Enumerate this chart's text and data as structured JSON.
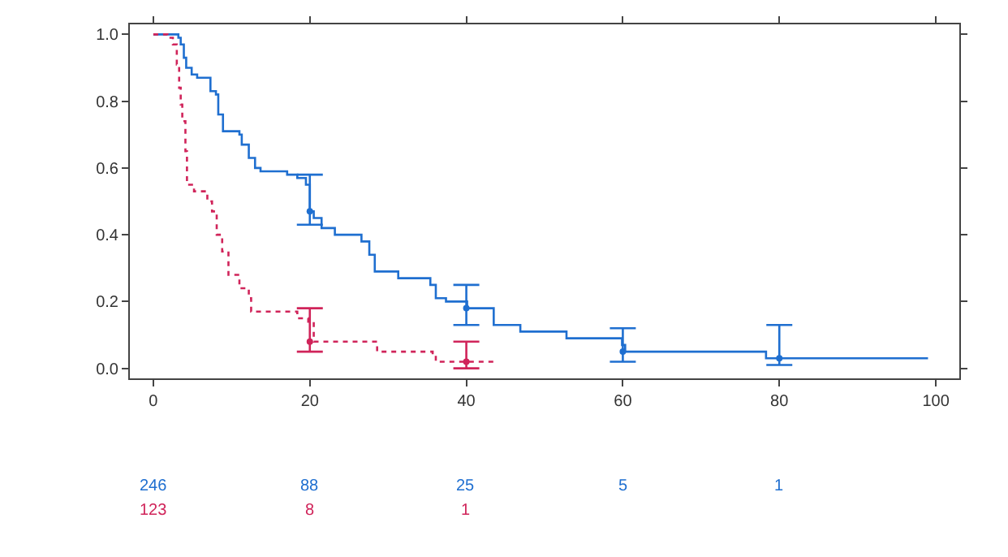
{
  "chart_data": {
    "type": "step",
    "xlim": [
      -3,
      103
    ],
    "xticks": [
      0,
      20,
      40,
      60,
      80,
      100
    ],
    "ylim": [
      -0.03,
      1.03
    ],
    "yticks": [
      {
        "value": 0,
        "label": "0.0"
      },
      {
        "value": 0.2,
        "label": "0.2"
      },
      {
        "value": 0.4,
        "label": "0.4"
      },
      {
        "value": 0.6,
        "label": "0.6"
      },
      {
        "value": 0.8,
        "label": "0.8"
      },
      {
        "value": 1,
        "label": "1.0"
      }
    ],
    "series": [
      {
        "color": "#1f6fd0",
        "line_style": "solid",
        "x": [
          0,
          3.2,
          3.5,
          3.9,
          4.2,
          4.9,
          5.6,
          7.3,
          8.0,
          8.3,
          8.9,
          11,
          11.3,
          12.2,
          13,
          13.7,
          17.1,
          18.4,
          19.5,
          20,
          20.5,
          21.5,
          23.2,
          26.6,
          27.6,
          28.3,
          31.3,
          35.4,
          36.1,
          37.4,
          40.1,
          43.5,
          46.9,
          52.8,
          59.9,
          60.3,
          78.3,
          99
        ],
        "values": [
          1.0,
          0.99,
          0.97,
          0.93,
          0.9,
          0.88,
          0.87,
          0.83,
          0.82,
          0.76,
          0.71,
          0.7,
          0.67,
          0.63,
          0.6,
          0.59,
          0.58,
          0.57,
          0.55,
          0.47,
          0.45,
          0.42,
          0.4,
          0.38,
          0.34,
          0.29,
          0.27,
          0.25,
          0.21,
          0.2,
          0.18,
          0.13,
          0.11,
          0.09,
          0.07,
          0.05,
          0.03,
          0.03
        ]
      },
      {
        "color": "#d0245a",
        "line_style": "dotted",
        "x": [
          0,
          1.8,
          2.5,
          3.0,
          3.3,
          3.5,
          3.7,
          4.1,
          4.3,
          5.2,
          6.9,
          7.5,
          8.1,
          8.8,
          9.6,
          11,
          12.2,
          12.5,
          18.4,
          19.8,
          20.5,
          28.6,
          35.7,
          36.1,
          43.5
        ],
        "values": [
          1.0,
          0.99,
          0.97,
          0.91,
          0.84,
          0.79,
          0.74,
          0.65,
          0.55,
          0.53,
          0.5,
          0.47,
          0.4,
          0.35,
          0.28,
          0.24,
          0.21,
          0.17,
          0.15,
          0.14,
          0.08,
          0.05,
          0.04,
          0.02,
          0.01
        ]
      },
      {
        "type": "scatter",
        "marker": "circle",
        "color": "#1f6fd0",
        "x": [
          20,
          40,
          60,
          80
        ],
        "values": [
          0.47,
          0.18,
          0.05,
          0.03
        ],
        "errors": [
          [
            0.43,
            0.58
          ],
          [
            0.13,
            0.25
          ],
          [
            0.02,
            0.12
          ],
          [
            0.01,
            0.13
          ]
        ]
      },
      {
        "type": "scatter",
        "marker": "circle",
        "color": "#d0245a",
        "x": [
          20,
          40
        ],
        "values": [
          0.08,
          0.02
        ],
        "errors": [
          [
            0.05,
            0.18
          ],
          [
            0.0,
            0.08
          ]
        ]
      }
    ],
    "annotations": [
      "246",
      "88",
      "25",
      "5",
      "1",
      "123",
      "8",
      "1"
    ]
  }
}
